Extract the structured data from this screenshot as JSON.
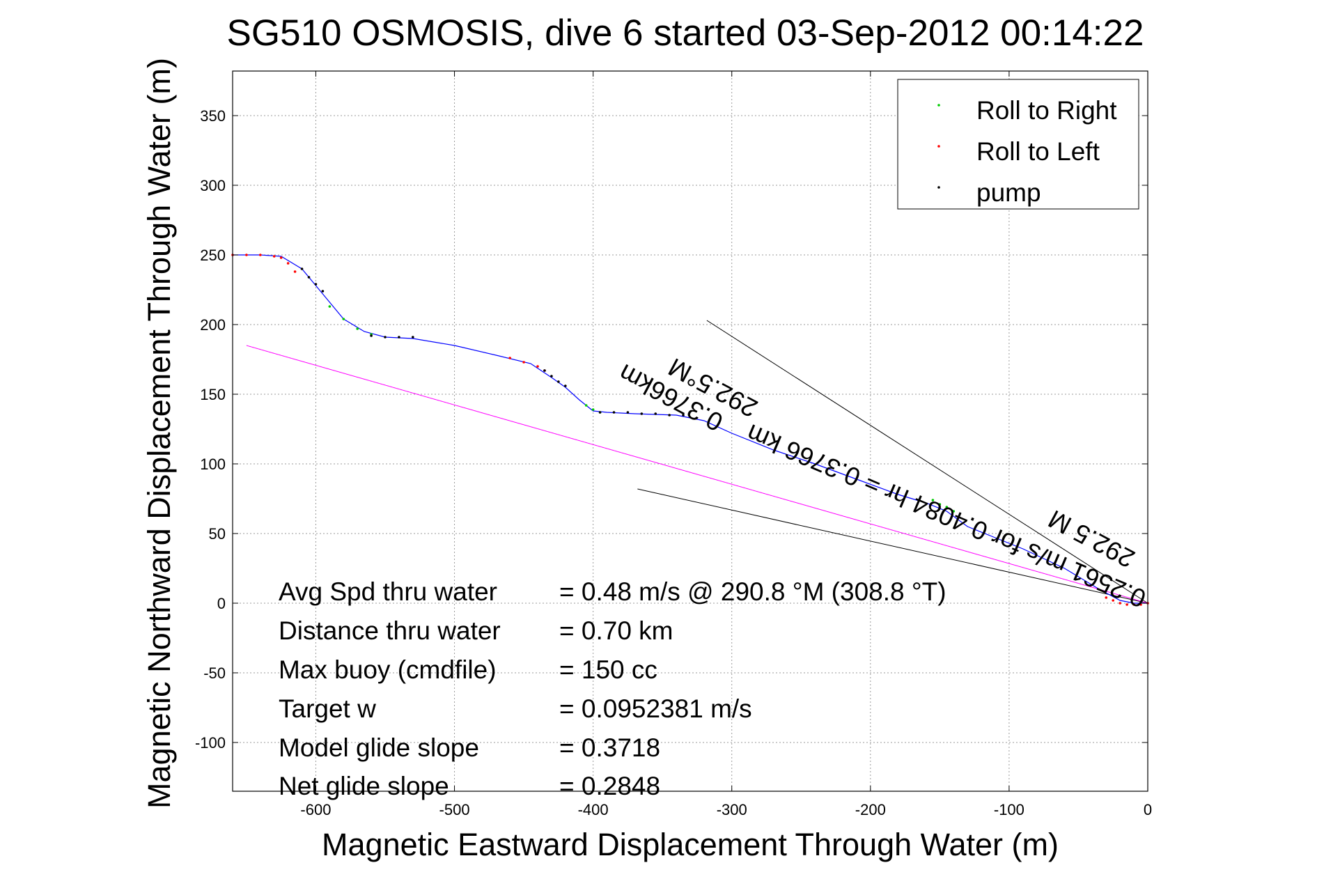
{
  "chart_data": {
    "type": "line",
    "title": "SG510 OSMOSIS, dive 6 started 03-Sep-2012 00:14:22",
    "xlabel": "Magnetic Eastward Displacement Through Water (m)",
    "ylabel": "Magnetic Northward Displacement Through Water (m)",
    "xlim": [
      -660,
      0
    ],
    "ylim": [
      -135,
      382
    ],
    "xticks": [
      -600,
      -500,
      -400,
      -300,
      -200,
      -100,
      0
    ],
    "yticks": [
      -100,
      -50,
      0,
      50,
      100,
      150,
      200,
      250,
      300,
      350
    ],
    "grid": true,
    "legend_position": "top-right",
    "colors": {
      "track": "#0000ff",
      "roll_right": "#00cc00",
      "roll_left": "#ff0000",
      "pump": "#000000",
      "rhumb_line": "#ff00ff",
      "heading_lines": "#000000"
    },
    "legend": [
      {
        "label": "Roll to Right",
        "color": "#00cc00"
      },
      {
        "label": "Roll to Left",
        "color": "#ff0000"
      },
      {
        "label": "pump",
        "color": "#000000"
      }
    ],
    "series": [
      {
        "type": "line",
        "color": "#0000ff",
        "x": [
          -660,
          -640,
          -625,
          -610,
          -595,
          -580,
          -565,
          -550,
          -530,
          -500,
          -470,
          -445,
          -430,
          -420,
          -410,
          -400,
          -390,
          -370,
          -340,
          -320,
          -300,
          -270,
          -240,
          -210,
          -180,
          -160,
          -145,
          -130,
          -110,
          -90,
          -60,
          -35,
          -20,
          -10,
          0
        ],
        "y": [
          250,
          250,
          249,
          240,
          222,
          204,
          195,
          191,
          190,
          185,
          178,
          172,
          162,
          155,
          146,
          138,
          137,
          136,
          135,
          131,
          122,
          110,
          100,
          89,
          78,
          72,
          66,
          55,
          47,
          39,
          25,
          10,
          2,
          0,
          0
        ]
      }
    ],
    "markers": {
      "roll_right": [
        {
          "x": [
            -590,
            -580,
            -570,
            -560
          ],
          "y": [
            213,
            204,
            197,
            193
          ]
        },
        {
          "x": [
            -405,
            -400,
            -395
          ],
          "y": [
            142,
            139,
            137
          ]
        },
        {
          "x": [
            -155,
            -150,
            -145,
            -140
          ],
          "y": [
            74,
            71,
            69,
            66
          ]
        }
      ],
      "roll_left": [
        {
          "x": [
            -660,
            -650,
            -640,
            -630,
            -625,
            -620,
            -615
          ],
          "y": [
            250,
            250,
            250,
            249,
            248,
            244,
            238
          ]
        },
        {
          "x": [
            -460,
            -450,
            -440,
            -435
          ],
          "y": [
            176,
            173,
            170,
            167
          ]
        },
        {
          "x": [
            -30,
            -25,
            -20,
            -15,
            -10,
            -5,
            0
          ],
          "y": [
            4,
            2,
            0,
            -1,
            -1,
            -1,
            0
          ]
        }
      ],
      "pump": [
        {
          "x": [
            -610,
            -605,
            -600,
            -595
          ],
          "y": [
            240,
            234,
            229,
            224
          ]
        },
        {
          "x": [
            -560,
            -550,
            -540,
            -530
          ],
          "y": [
            192,
            191,
            191,
            191
          ]
        },
        {
          "x": [
            -435,
            -430,
            -425,
            -420
          ],
          "y": [
            167,
            163,
            159,
            156
          ]
        },
        {
          "x": [
            -395,
            -385,
            -375,
            -365,
            -355,
            -345,
            -335
          ],
          "y": [
            137,
            137,
            137,
            136,
            136,
            135,
            135
          ]
        }
      ]
    },
    "rhumb_line": {
      "x": [
        -650,
        0
      ],
      "y": [
        185,
        0
      ]
    },
    "heading_lines": [
      {
        "x": [
          -318,
          0
        ],
        "y": [
          203,
          0
        ]
      },
      {
        "x": [
          -368,
          0
        ],
        "y": [
          82,
          0
        ]
      }
    ],
    "annotations": [
      {
        "text": "0.3766km",
        "x": -305,
        "y": 134,
        "angle": 208
      },
      {
        "text": "292.5°M",
        "x": -280,
        "y": 144,
        "angle": 208
      },
      {
        "text": "0.2561 m/s for 0.4084 hr = 0.3766 km",
        "x": 0,
        "y": 8,
        "angle": 203
      },
      {
        "text": "292.5 M",
        "x": -8,
        "y": 36,
        "angle": 208
      }
    ]
  },
  "stats": {
    "rows": [
      {
        "label": "Avg Spd thru water",
        "value": "=  0.48 m/s @ 290.8 °M (308.8 °T)"
      },
      {
        "label": "Distance thru water",
        "value": "=  0.70 km"
      },
      {
        "label": "Max buoy (cmdfile)",
        "value": "= 150 cc"
      },
      {
        "label": "Target w",
        "value": "= 0.0952381 m/s"
      },
      {
        "label": "Model glide slope",
        "value": "= 0.3718"
      },
      {
        "label": "Net glide slope",
        "value": "= 0.2848"
      }
    ]
  }
}
